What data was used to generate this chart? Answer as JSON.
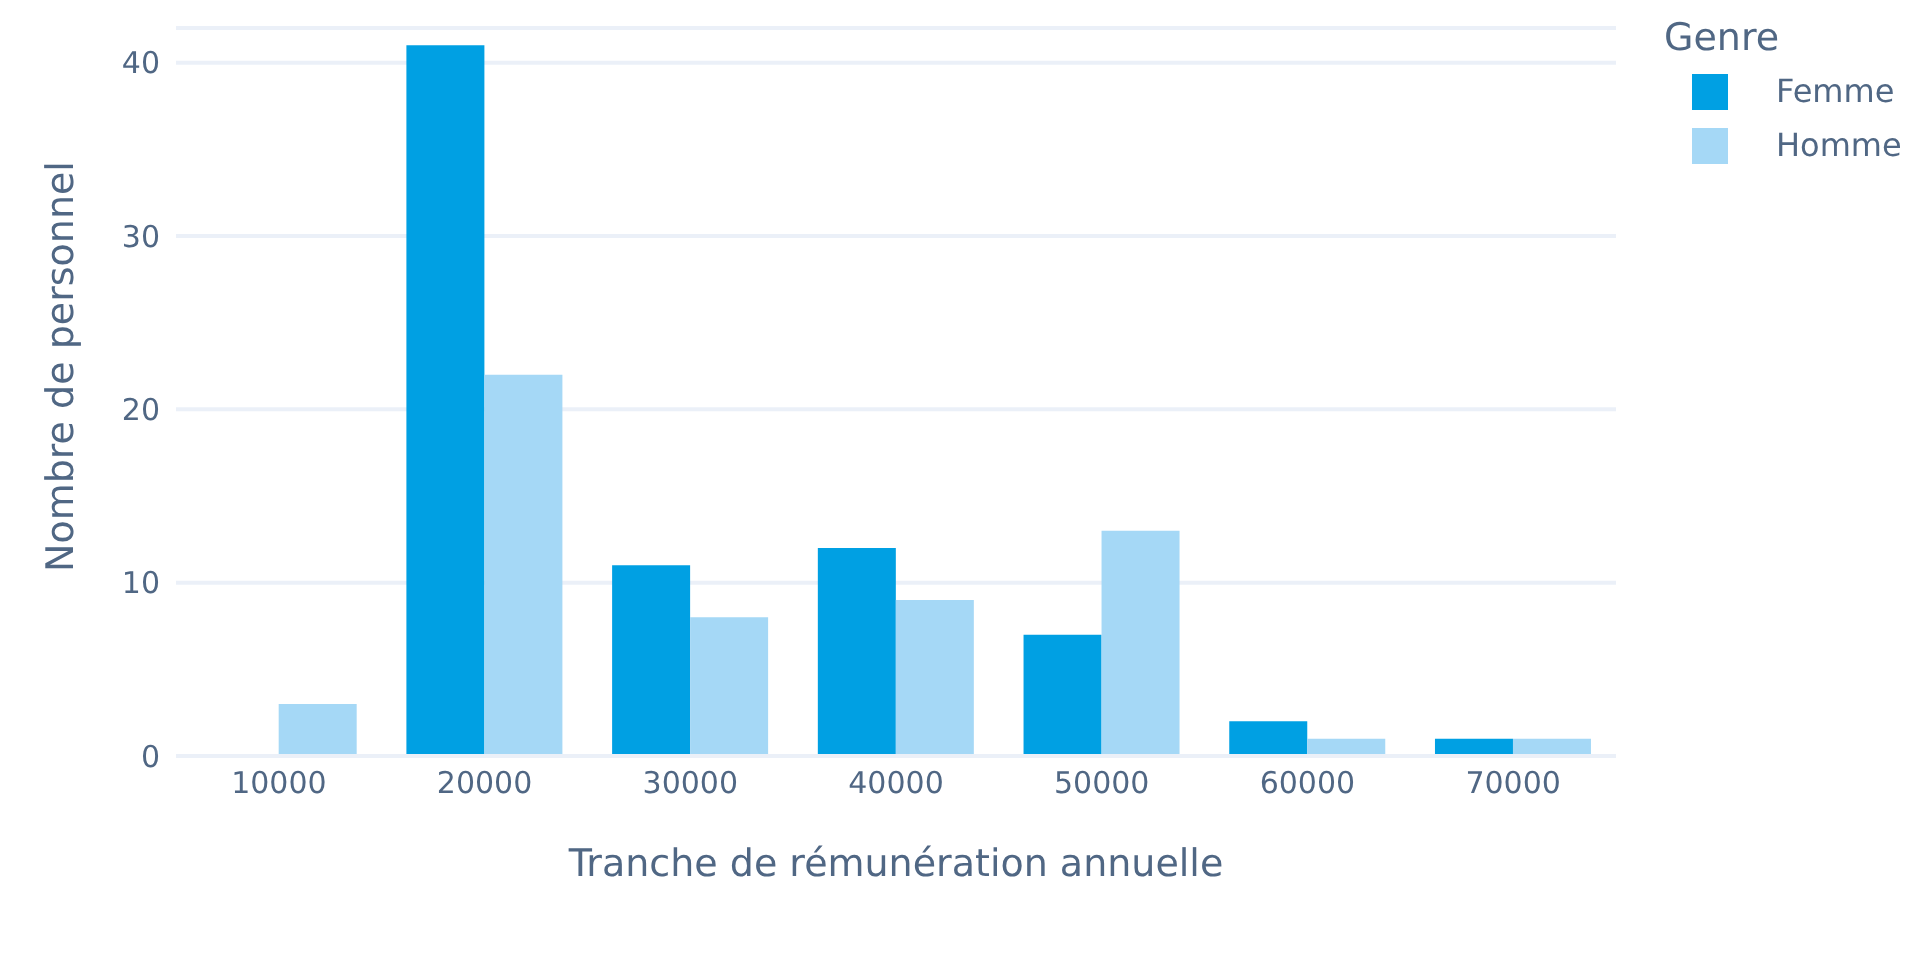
{
  "chart_data": {
    "type": "bar",
    "xlabel": "Tranche de rémunération annuelle",
    "ylabel": "Nombre de personnel",
    "legend_title": "Genre",
    "categories": [
      "10000",
      "20000",
      "30000",
      "40000",
      "50000",
      "60000",
      "70000"
    ],
    "series": [
      {
        "name": "Femme",
        "color": "#00a0e3",
        "values": [
          null,
          41,
          11,
          12,
          7,
          2,
          1
        ]
      },
      {
        "name": "Homme",
        "color": "#a5d8f6",
        "values": [
          3,
          22,
          8,
          9,
          13,
          1,
          1
        ]
      }
    ],
    "ylim": [
      0,
      42
    ],
    "yticks": [
      0,
      10,
      20,
      30,
      40
    ],
    "grid": "y",
    "legend": "top right"
  }
}
